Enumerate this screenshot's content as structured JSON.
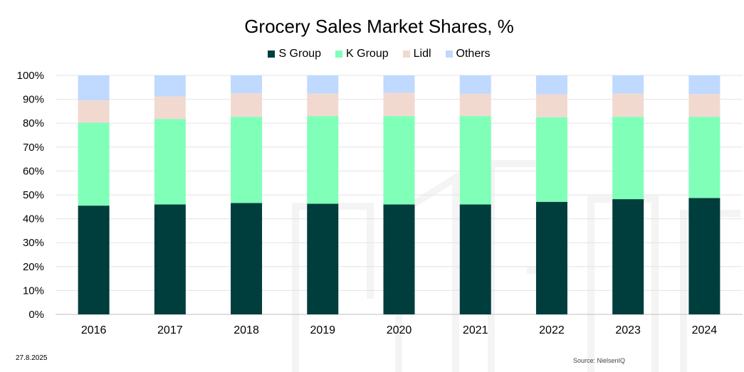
{
  "chart_data": {
    "type": "bar",
    "stacked": true,
    "title": "Grocery Sales Market Shares, %",
    "categories": [
      "2016",
      "2017",
      "2018",
      "2019",
      "2020",
      "2021",
      "2022",
      "2023",
      "2024"
    ],
    "series": [
      {
        "name": "S Group",
        "color": "#003D3D",
        "values": [
          45.5,
          46.0,
          46.6,
          46.3,
          46.0,
          46.0,
          47.1,
          48.2,
          48.7
        ]
      },
      {
        "name": "K Group",
        "color": "#80FFB8",
        "values": [
          34.7,
          35.8,
          36.1,
          36.7,
          37.0,
          37.0,
          35.4,
          34.5,
          34.0
        ]
      },
      {
        "name": "Lidl",
        "color": "#F2D9D0",
        "values": [
          9.3,
          9.4,
          9.8,
          9.4,
          9.7,
          9.3,
          9.6,
          9.7,
          9.5
        ]
      },
      {
        "name": "Others",
        "color": "#BFD9FF",
        "values": [
          10.5,
          8.8,
          7.5,
          7.6,
          7.3,
          7.7,
          7.9,
          7.6,
          7.8
        ]
      }
    ],
    "yticks": [
      "0%",
      "10%",
      "20%",
      "30%",
      "40%",
      "50%",
      "60%",
      "70%",
      "80%",
      "90%",
      "100%"
    ],
    "ylim": [
      0,
      100
    ],
    "xlabel": "",
    "ylabel": "",
    "legend_position": "top-center",
    "grid": true
  },
  "footer": {
    "date": "27.8.2025",
    "source": "Source: NielsenIQ"
  }
}
